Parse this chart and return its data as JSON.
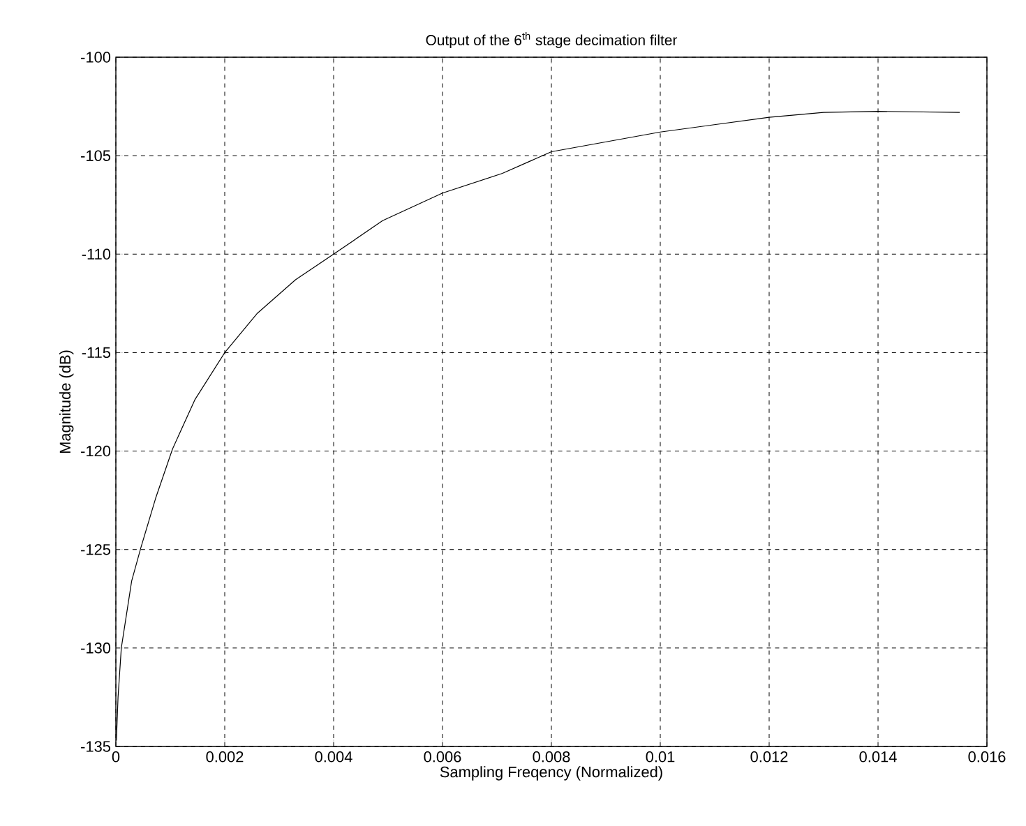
{
  "chart_data": {
    "type": "line",
    "title": "Output of the 6$^{th}$ stage decimation filter",
    "xlabel": "Sampling Freqency (Normalized)",
    "ylabel": "Magnitude (dB)",
    "x": [
      1e-05,
      4e-05,
      0.0001,
      0.00029,
      0.00046,
      0.00073,
      0.00104,
      0.00145,
      0.002,
      0.0026,
      0.0033,
      0.004,
      0.0049,
      0.006,
      0.0071,
      0.008,
      0.01,
      0.012,
      0.013,
      0.014,
      0.0155
    ],
    "series": [
      {
        "color": "#000000",
        "values": [
          -134.7,
          -132.5,
          -130.0,
          -126.6,
          -124.9,
          -122.4,
          -119.9,
          -117.4,
          -115.0,
          -113.0,
          -111.3,
          -110.0,
          -108.3,
          -106.9,
          -105.9,
          -104.8,
          -103.8,
          -103.05,
          -102.8,
          -102.75,
          -102.8
        ]
      }
    ],
    "xlim": [
      0,
      0.016
    ],
    "ylim": [
      -135,
      -100
    ],
    "xticks": [
      0,
      0.002,
      0.004,
      0.006,
      0.008,
      0.01,
      0.012,
      0.014,
      0.016
    ],
    "yticks": [
      -135,
      -130,
      -125,
      -120,
      -115,
      -110,
      -105,
      -100
    ],
    "grid": true,
    "marker": "none",
    "line_style": "solid"
  }
}
